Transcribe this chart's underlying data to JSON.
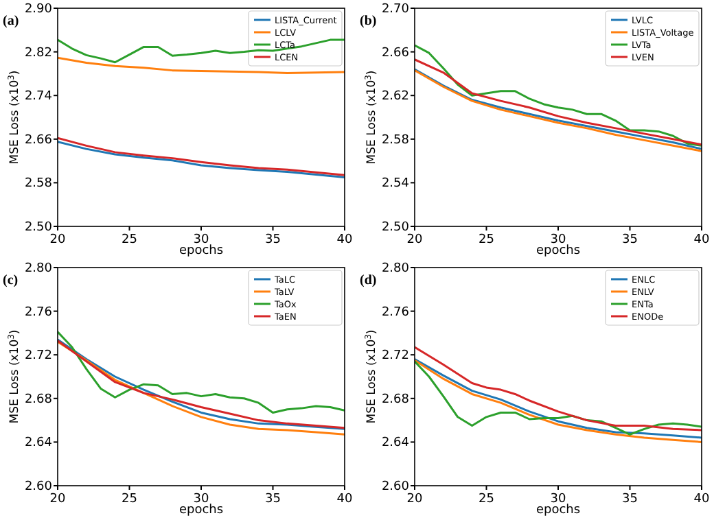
{
  "chart_data": [
    {
      "type": "line",
      "annotations": [
        "(a)"
      ],
      "xlabel": "epochs",
      "ylabel": "MSE Loss (x10$^{3}$)",
      "xlim": [
        20,
        40
      ],
      "xticks": [
        20,
        25,
        30,
        35,
        40
      ],
      "ylim": [
        2.5,
        2.9
      ],
      "yticks": [
        {
          "value": 2.5,
          "label": "2.50"
        },
        2.58,
        2.66,
        2.74,
        2.82,
        {
          "value": 2.9,
          "label": "2.90"
        }
      ],
      "legend": "top right",
      "grid": false,
      "series": [
        {
          "name": "LISTA_Current",
          "color": "#1f77b4",
          "x": [
            20,
            22,
            24,
            26,
            28,
            30,
            32,
            34,
            36,
            38,
            40
          ],
          "values": [
            2.655,
            2.642,
            2.632,
            2.626,
            2.621,
            2.612,
            2.607,
            2.603,
            2.6,
            2.595,
            2.59
          ]
        },
        {
          "name": "LCLV",
          "color": "#ff7f0e",
          "x": [
            20,
            22,
            24,
            26,
            28,
            30,
            32,
            34,
            36,
            38,
            40
          ],
          "values": [
            2.809,
            2.8,
            2.794,
            2.791,
            2.786,
            2.785,
            2.784,
            2.783,
            2.781,
            2.782,
            2.783
          ]
        },
        {
          "name": "LCTa",
          "color": "#2ca02c",
          "x": [
            20,
            21,
            22,
            23,
            24,
            25,
            26,
            27,
            28,
            29,
            30,
            31,
            32,
            33,
            34,
            35,
            36,
            37,
            38,
            39,
            40
          ],
          "values": [
            2.842,
            2.826,
            2.814,
            2.808,
            2.801,
            2.815,
            2.829,
            2.829,
            2.813,
            2.815,
            2.818,
            2.822,
            2.818,
            2.82,
            2.823,
            2.822,
            2.826,
            2.83,
            2.836,
            2.842,
            2.842
          ]
        },
        {
          "name": "LCEN",
          "color": "#d62728",
          "x": [
            20,
            22,
            24,
            26,
            28,
            30,
            32,
            34,
            36,
            38,
            40
          ],
          "values": [
            2.662,
            2.648,
            2.636,
            2.63,
            2.625,
            2.618,
            2.612,
            2.607,
            2.604,
            2.599,
            2.594
          ]
        }
      ]
    },
    {
      "type": "line",
      "annotations": [
        "(b)"
      ],
      "xlabel": "epochs",
      "ylabel": "MSE Loss (x10$^{3}$)",
      "xlim": [
        20,
        40
      ],
      "xticks": [
        20,
        25,
        30,
        35,
        40
      ],
      "ylim": [
        2.5,
        2.7
      ],
      "yticks": [
        {
          "value": 2.5,
          "label": "2.50"
        },
        2.54,
        2.58,
        2.62,
        2.66,
        {
          "value": 2.7,
          "label": "2.70"
        }
      ],
      "legend": "top right",
      "grid": false,
      "series": [
        {
          "name": "LVLC",
          "color": "#1f77b4",
          "x": [
            20,
            22,
            24,
            26,
            28,
            30,
            32,
            34,
            36,
            38,
            40
          ],
          "values": [
            2.644,
            2.629,
            2.616,
            2.609,
            2.603,
            2.597,
            2.592,
            2.587,
            2.582,
            2.577,
            2.571
          ]
        },
        {
          "name": "LISTA_Voltage",
          "color": "#ff7f0e",
          "x": [
            20,
            22,
            24,
            26,
            28,
            30,
            32,
            34,
            36,
            38,
            40
          ],
          "values": [
            2.643,
            2.628,
            2.615,
            2.607,
            2.601,
            2.595,
            2.59,
            2.584,
            2.579,
            2.574,
            2.569
          ]
        },
        {
          "name": "LVTa",
          "color": "#2ca02c",
          "x": [
            20,
            21,
            22,
            23,
            24,
            25,
            26,
            27,
            28,
            29,
            30,
            31,
            32,
            33,
            34,
            35,
            36,
            37,
            38,
            39,
            40
          ],
          "values": [
            2.666,
            2.659,
            2.645,
            2.63,
            2.62,
            2.622,
            2.624,
            2.624,
            2.617,
            2.612,
            2.609,
            2.607,
            2.603,
            2.603,
            2.597,
            2.588,
            2.588,
            2.587,
            2.583,
            2.576,
            2.574
          ]
        },
        {
          "name": "LVEN",
          "color": "#d62728",
          "x": [
            20,
            22,
            24,
            26,
            28,
            30,
            32,
            34,
            36,
            38,
            40
          ],
          "values": [
            2.653,
            2.641,
            2.622,
            2.615,
            2.609,
            2.601,
            2.595,
            2.59,
            2.585,
            2.58,
            2.575
          ]
        }
      ]
    },
    {
      "type": "line",
      "annotations": [
        "(c)"
      ],
      "xlabel": "epochs",
      "ylabel": "MSE Loss (x10$^{3}$)",
      "xlim": [
        20,
        40
      ],
      "xticks": [
        20,
        25,
        30,
        35,
        40
      ],
      "ylim": [
        2.6,
        2.8
      ],
      "yticks": [
        {
          "value": 2.6,
          "label": "2.60"
        },
        2.64,
        2.68,
        2.72,
        2.76,
        {
          "value": 2.8,
          "label": "2.80"
        }
      ],
      "legend": "top right",
      "grid": false,
      "series": [
        {
          "name": "TaLC",
          "color": "#1f77b4",
          "x": [
            20,
            22,
            24,
            26,
            28,
            30,
            32,
            34,
            36,
            38,
            40
          ],
          "values": [
            2.734,
            2.716,
            2.7,
            2.688,
            2.677,
            2.667,
            2.661,
            2.657,
            2.656,
            2.654,
            2.652
          ]
        },
        {
          "name": "TaLV",
          "color": "#ff7f0e",
          "x": [
            20,
            22,
            24,
            26,
            28,
            30,
            32,
            34,
            36,
            38,
            40
          ],
          "values": [
            2.732,
            2.715,
            2.697,
            2.685,
            2.673,
            2.663,
            2.656,
            2.652,
            2.651,
            2.649,
            2.647
          ]
        },
        {
          "name": "TaOx",
          "color": "#2ca02c",
          "x": [
            20,
            21,
            22,
            23,
            24,
            25,
            26,
            27,
            28,
            29,
            30,
            31,
            32,
            33,
            34,
            35,
            36,
            37,
            38,
            39,
            40
          ],
          "values": [
            2.741,
            2.727,
            2.707,
            2.689,
            2.681,
            2.688,
            2.693,
            2.692,
            2.684,
            2.685,
            2.682,
            2.684,
            2.681,
            2.68,
            2.676,
            2.667,
            2.67,
            2.671,
            2.673,
            2.672,
            2.669
          ]
        },
        {
          "name": "TaEN",
          "color": "#d62728",
          "x": [
            20,
            22,
            24,
            26,
            28,
            30,
            32,
            34,
            36,
            38,
            40
          ],
          "values": [
            2.733,
            2.714,
            2.695,
            2.685,
            2.679,
            2.672,
            2.666,
            2.66,
            2.657,
            2.655,
            2.653
          ]
        }
      ]
    },
    {
      "type": "line",
      "annotations": [
        "(d)"
      ],
      "xlabel": "epochs",
      "ylabel": "MSE Loss (x10$^{3}$)",
      "xlim": [
        20,
        40
      ],
      "xticks": [
        20,
        25,
        30,
        35,
        40
      ],
      "ylim": [
        2.6,
        2.8
      ],
      "yticks": [
        {
          "value": 2.6,
          "label": "2.60"
        },
        2.64,
        2.68,
        2.72,
        2.76,
        {
          "value": 2.8,
          "label": "2.80"
        }
      ],
      "legend": "top right",
      "grid": false,
      "series": [
        {
          "name": "ENLC",
          "color": "#1f77b4",
          "x": [
            20,
            22,
            24,
            26,
            28,
            30,
            32,
            34,
            36,
            38,
            40
          ],
          "values": [
            2.716,
            2.701,
            2.687,
            2.679,
            2.668,
            2.659,
            2.653,
            2.649,
            2.648,
            2.646,
            2.644
          ]
        },
        {
          "name": "ENLV",
          "color": "#ff7f0e",
          "x": [
            20,
            22,
            24,
            26,
            28,
            30,
            32,
            34,
            36,
            38,
            40
          ],
          "values": [
            2.715,
            2.698,
            2.684,
            2.676,
            2.665,
            2.656,
            2.651,
            2.647,
            2.644,
            2.642,
            2.64
          ]
        },
        {
          "name": "ENTa",
          "color": "#2ca02c",
          "x": [
            20,
            21,
            22,
            23,
            24,
            25,
            26,
            27,
            28,
            29,
            30,
            31,
            32,
            33,
            34,
            35,
            36,
            37,
            38,
            39,
            40
          ],
          "values": [
            2.714,
            2.7,
            2.682,
            2.663,
            2.655,
            2.663,
            2.667,
            2.667,
            2.661,
            2.662,
            2.662,
            2.664,
            2.66,
            2.659,
            2.653,
            2.647,
            2.652,
            2.656,
            2.657,
            2.656,
            2.654
          ]
        },
        {
          "name": "ENODe",
          "color": "#d62728",
          "x": [
            20,
            22,
            24,
            25,
            26,
            27,
            28,
            30,
            32,
            34,
            36,
            38,
            40
          ],
          "values": [
            2.727,
            2.711,
            2.694,
            2.69,
            2.688,
            2.684,
            2.678,
            2.668,
            2.66,
            2.655,
            2.655,
            2.652,
            2.651
          ]
        }
      ]
    }
  ]
}
